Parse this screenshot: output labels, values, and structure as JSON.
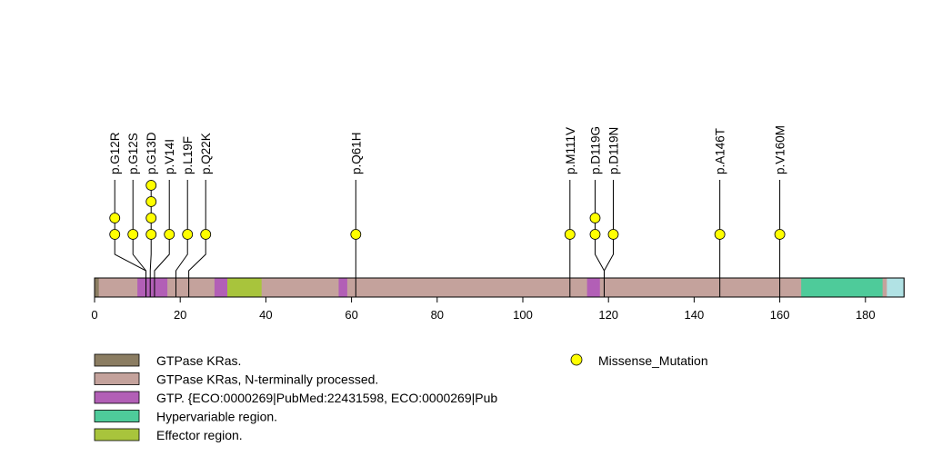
{
  "chart_data": {
    "type": "lollipop",
    "protein_length": 189,
    "x_ticks": [
      0,
      20,
      40,
      60,
      80,
      100,
      120,
      140,
      160,
      180
    ],
    "xlim": [
      0,
      189
    ],
    "domains": [
      {
        "name": "GTPase KRas.",
        "start": 0,
        "end": 189,
        "color": "#8b7d62"
      },
      {
        "name": "GTPase KRas, N-terminally processed.",
        "start": 1,
        "end": 186,
        "color": "#c4a29c"
      },
      {
        "name": "GTP. {ECO:0000269|PubMed:22431598, ECO:0000269|Pub",
        "start": 10,
        "end": 17,
        "color": "#b25fb6"
      },
      {
        "name": "GTP. {ECO:0000269|PubMed:22431598, ECO:0000269|Pub",
        "start": 28,
        "end": 31,
        "color": "#b25fb6"
      },
      {
        "name": "GTP. {ECO:0000269|PubMed:22431598, ECO:0000269|Pub",
        "start": 57,
        "end": 59,
        "color": "#b25fb6"
      },
      {
        "name": "GTP. {ECO:0000269|PubMed:22431598, ECO:0000269|Pub",
        "start": 115,
        "end": 118,
        "color": "#b25fb6"
      },
      {
        "name": "Hypervariable region.",
        "start": 165,
        "end": 184,
        "color": "#4ecb9a"
      },
      {
        "name": "Effector region.",
        "start": 31,
        "end": 39,
        "color": "#a8c43c"
      },
      {
        "name": "",
        "start": 185,
        "end": 189,
        "color": "#b1e2e4"
      }
    ],
    "mutations": [
      {
        "label": "p.G12R",
        "position": 12,
        "count": 2
      },
      {
        "label": "p.G12S",
        "position": 12,
        "count": 1
      },
      {
        "label": "p.G13D",
        "position": 13,
        "count": 4
      },
      {
        "label": "p.V14I",
        "position": 14,
        "count": 1
      },
      {
        "label": "p.L19F",
        "position": 19,
        "count": 1
      },
      {
        "label": "p.Q22K",
        "position": 22,
        "count": 1
      },
      {
        "label": "p.Q61H",
        "position": 61,
        "count": 1
      },
      {
        "label": "p.M111V",
        "position": 111,
        "count": 1
      },
      {
        "label": "p.D119G",
        "position": 119,
        "count": 2
      },
      {
        "label": "p.D119N",
        "position": 119,
        "count": 1
      },
      {
        "label": "p.A146T",
        "position": 146,
        "count": 1
      },
      {
        "label": "p.V160M",
        "position": 160,
        "count": 1
      }
    ],
    "mutation_color": "#ffff00",
    "legend": {
      "domains": [
        {
          "label": "GTPase KRas.",
          "color": "#8b7d62"
        },
        {
          "label": "GTPase KRas, N-terminally processed.",
          "color": "#c4a29c"
        },
        {
          "label": "GTP. {ECO:0000269|PubMed:22431598, ECO:0000269|Pub",
          "color": "#b25fb6"
        },
        {
          "label": "Hypervariable region.",
          "color": "#4ecb9a"
        },
        {
          "label": "Effector region.",
          "color": "#a8c43c"
        }
      ],
      "mutation_type": "Missense_Mutation",
      "placement": "bottom"
    }
  }
}
